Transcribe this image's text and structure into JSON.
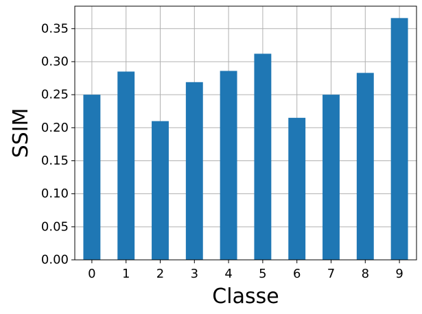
{
  "chart_data": {
    "type": "bar",
    "categories": [
      "0",
      "1",
      "2",
      "3",
      "4",
      "5",
      "6",
      "7",
      "8",
      "9"
    ],
    "values": [
      0.25,
      0.285,
      0.21,
      0.269,
      0.286,
      0.312,
      0.215,
      0.25,
      0.283,
      0.366
    ],
    "xlabel": "Classe",
    "ylabel": "SSIM",
    "ylim": [
      0,
      0.384
    ],
    "yticks": [
      0.0,
      0.05,
      0.1,
      0.15,
      0.2,
      0.25,
      0.3,
      0.35
    ],
    "ytick_labels": [
      "0.00",
      "0.05",
      "0.10",
      "0.15",
      "0.20",
      "0.25",
      "0.30",
      "0.35"
    ],
    "grid": true,
    "bar_color": "#1f77b4",
    "grid_color": "#b0b0b0"
  }
}
